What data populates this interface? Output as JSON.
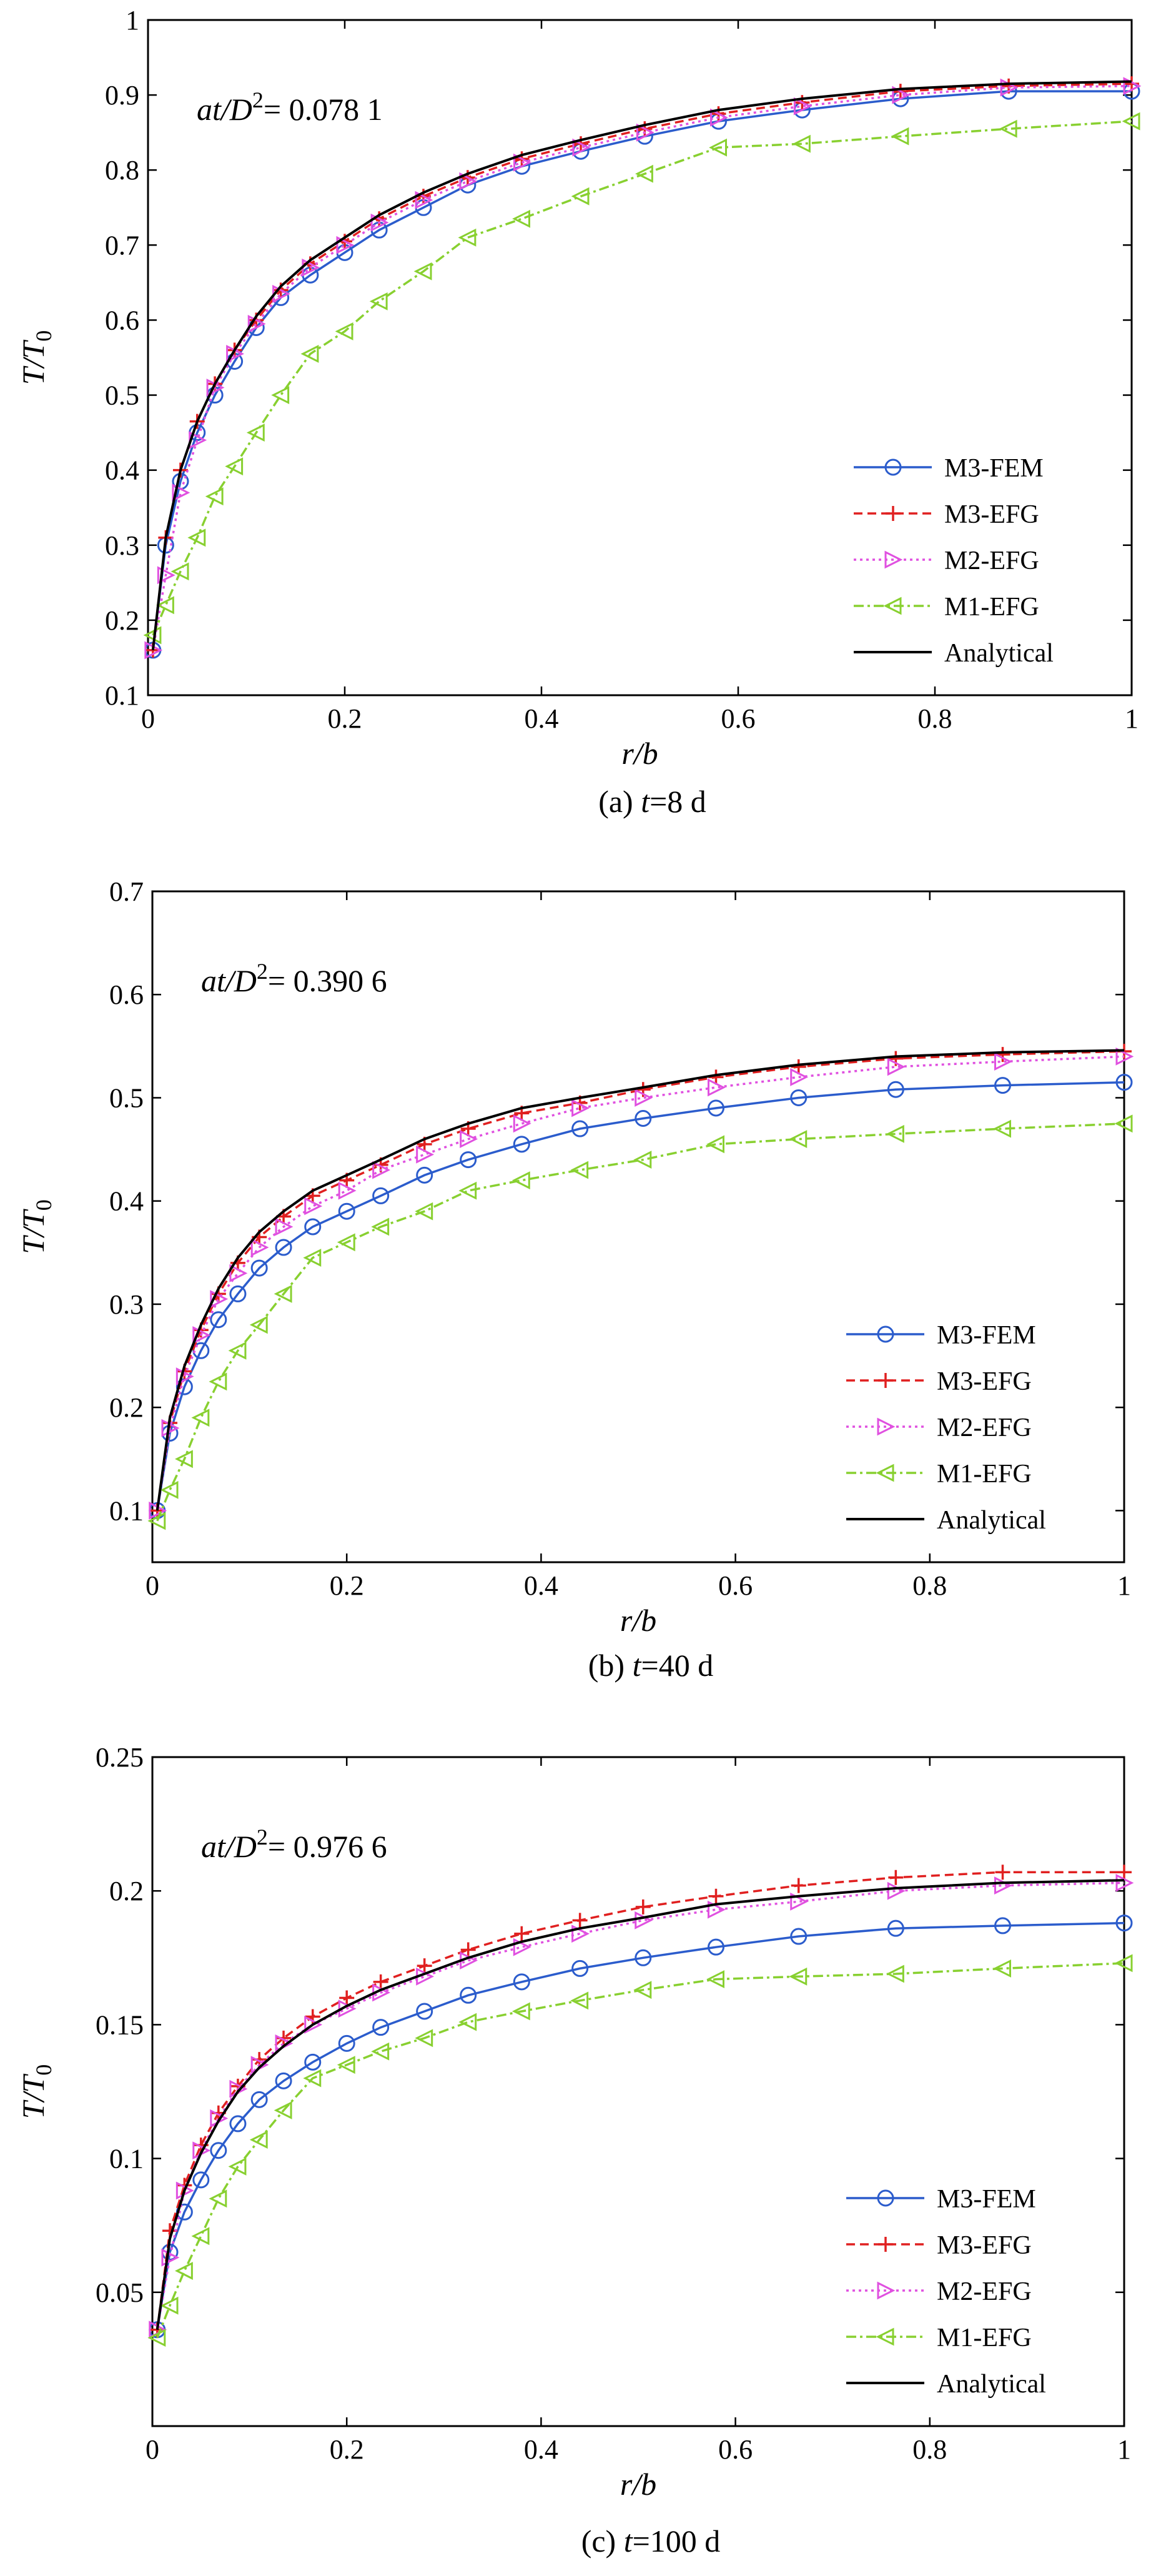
{
  "chart_data": [
    {
      "type": "line",
      "caption": "(a) t=8 d",
      "annotation": "at/D²= 0.078 1",
      "xlabel": "r/b",
      "ylabel": "T/T0",
      "xlim": [
        0,
        1
      ],
      "ylim": [
        0.1,
        1
      ],
      "xticks": [
        "0",
        "0.2",
        "0.4",
        "0.6",
        "0.8",
        "1"
      ],
      "yticks": [
        "0.1",
        "0.2",
        "0.3",
        "0.4",
        "0.5",
        "0.6",
        "0.7",
        "0.8",
        "0.9",
        "1"
      ],
      "legend_position": "bottom-right",
      "x": [
        0.005,
        0.018,
        0.033,
        0.05,
        0.068,
        0.088,
        0.11,
        0.135,
        0.165,
        0.2,
        0.235,
        0.28,
        0.325,
        0.38,
        0.44,
        0.505,
        0.58,
        0.665,
        0.765,
        0.875,
        1.0
      ],
      "series": [
        {
          "name": "M3-FEM",
          "color": "#2b5ccc",
          "dash": "",
          "marker": "circle",
          "values": [
            0.16,
            0.3,
            0.385,
            0.45,
            0.5,
            0.545,
            0.59,
            0.63,
            0.66,
            0.69,
            0.72,
            0.75,
            0.78,
            0.805,
            0.825,
            0.845,
            0.865,
            0.88,
            0.895,
            0.905,
            0.905
          ]
        },
        {
          "name": "M3-EFG",
          "color": "#e02020",
          "dash": "14,8",
          "marker": "plus",
          "values": [
            0.16,
            0.31,
            0.4,
            0.465,
            0.515,
            0.56,
            0.6,
            0.64,
            0.675,
            0.705,
            0.735,
            0.765,
            0.79,
            0.815,
            0.835,
            0.855,
            0.875,
            0.89,
            0.905,
            0.912,
            0.915
          ]
        },
        {
          "name": "M2-EFG",
          "color": "#e050e0",
          "dash": "4,6",
          "marker": "triangle-right",
          "values": [
            0.16,
            0.26,
            0.37,
            0.44,
            0.51,
            0.555,
            0.595,
            0.635,
            0.67,
            0.7,
            0.73,
            0.76,
            0.785,
            0.81,
            0.83,
            0.85,
            0.87,
            0.885,
            0.9,
            0.91,
            0.912
          ]
        },
        {
          "name": "M1-EFG",
          "color": "#88d030",
          "dash": "16,6,4,6",
          "marker": "triangle-left",
          "values": [
            0.18,
            0.22,
            0.265,
            0.31,
            0.365,
            0.405,
            0.45,
            0.5,
            0.555,
            0.585,
            0.625,
            0.665,
            0.71,
            0.735,
            0.765,
            0.795,
            0.83,
            0.835,
            0.845,
            0.855,
            0.865
          ]
        },
        {
          "name": "Analytical",
          "color": "#000000",
          "dash": "",
          "marker": "none",
          "values": [
            0.16,
            0.31,
            0.4,
            0.465,
            0.515,
            0.56,
            0.605,
            0.645,
            0.68,
            0.71,
            0.74,
            0.77,
            0.795,
            0.82,
            0.84,
            0.86,
            0.88,
            0.895,
            0.908,
            0.915,
            0.918
          ]
        }
      ]
    },
    {
      "type": "line",
      "caption": "(b) t=40 d",
      "annotation": "at/D²= 0.390 6",
      "xlabel": "r/b",
      "ylabel": "T/T0",
      "xlim": [
        0,
        1
      ],
      "ylim": [
        0.05,
        0.7
      ],
      "xticks": [
        "0",
        "0.2",
        "0.4",
        "0.6",
        "0.8",
        "1"
      ],
      "yticks": [
        "0.1",
        "0.2",
        "0.3",
        "0.4",
        "0.5",
        "0.6",
        "0.7"
      ],
      "legend_position": "bottom-right",
      "x": [
        0.005,
        0.018,
        0.033,
        0.05,
        0.068,
        0.088,
        0.11,
        0.135,
        0.165,
        0.2,
        0.235,
        0.28,
        0.325,
        0.38,
        0.44,
        0.505,
        0.58,
        0.665,
        0.765,
        0.875,
        1.0
      ],
      "series": [
        {
          "name": "M3-FEM",
          "color": "#2b5ccc",
          "dash": "",
          "marker": "circle",
          "values": [
            0.1,
            0.175,
            0.22,
            0.255,
            0.285,
            0.31,
            0.335,
            0.355,
            0.375,
            0.39,
            0.405,
            0.425,
            0.44,
            0.455,
            0.47,
            0.48,
            0.49,
            0.5,
            0.508,
            0.512,
            0.515
          ]
        },
        {
          "name": "M3-EFG",
          "color": "#e02020",
          "dash": "14,8",
          "marker": "plus",
          "values": [
            0.1,
            0.185,
            0.235,
            0.275,
            0.31,
            0.34,
            0.365,
            0.385,
            0.405,
            0.42,
            0.435,
            0.455,
            0.47,
            0.485,
            0.495,
            0.508,
            0.52,
            0.53,
            0.538,
            0.542,
            0.545
          ]
        },
        {
          "name": "M2-EFG",
          "color": "#e050e0",
          "dash": "4,6",
          "marker": "triangle-right",
          "values": [
            0.1,
            0.18,
            0.23,
            0.27,
            0.305,
            0.33,
            0.355,
            0.375,
            0.395,
            0.41,
            0.43,
            0.445,
            0.46,
            0.475,
            0.49,
            0.5,
            0.51,
            0.52,
            0.53,
            0.535,
            0.54
          ]
        },
        {
          "name": "M1-EFG",
          "color": "#88d030",
          "dash": "16,6,4,6",
          "marker": "triangle-left",
          "values": [
            0.09,
            0.12,
            0.15,
            0.19,
            0.225,
            0.255,
            0.28,
            0.31,
            0.345,
            0.36,
            0.375,
            0.39,
            0.41,
            0.42,
            0.43,
            0.44,
            0.455,
            0.46,
            0.465,
            0.47,
            0.475
          ]
        },
        {
          "name": "Analytical",
          "color": "#000000",
          "dash": "",
          "marker": "none",
          "values": [
            0.1,
            0.19,
            0.24,
            0.28,
            0.315,
            0.345,
            0.37,
            0.39,
            0.41,
            0.425,
            0.44,
            0.46,
            0.475,
            0.49,
            0.5,
            0.51,
            0.522,
            0.532,
            0.54,
            0.544,
            0.546
          ]
        }
      ]
    },
    {
      "type": "line",
      "caption": "(c) t=100 d",
      "annotation": "at/D²= 0.976 6",
      "xlabel": "r/b",
      "ylabel": "T/T0",
      "xlim": [
        0,
        1
      ],
      "ylim": [
        0,
        0.25
      ],
      "xticks": [
        "0",
        "0.2",
        "0.4",
        "0.6",
        "0.8",
        "1"
      ],
      "yticks": [
        "0.05",
        "0.1",
        "0.15",
        "0.2",
        "0.25"
      ],
      "legend_position": "bottom-right",
      "x": [
        0.005,
        0.018,
        0.033,
        0.05,
        0.068,
        0.088,
        0.11,
        0.135,
        0.165,
        0.2,
        0.235,
        0.28,
        0.325,
        0.38,
        0.44,
        0.505,
        0.58,
        0.665,
        0.765,
        0.875,
        1.0
      ],
      "series": [
        {
          "name": "M3-FEM",
          "color": "#2b5ccc",
          "dash": "",
          "marker": "circle",
          "values": [
            0.036,
            0.065,
            0.08,
            0.092,
            0.103,
            0.113,
            0.122,
            0.129,
            0.136,
            0.143,
            0.149,
            0.155,
            0.161,
            0.166,
            0.171,
            0.175,
            0.179,
            0.183,
            0.186,
            0.187,
            0.188
          ]
        },
        {
          "name": "M3-EFG",
          "color": "#e02020",
          "dash": "14,8",
          "marker": "plus",
          "values": [
            0.036,
            0.073,
            0.09,
            0.105,
            0.117,
            0.127,
            0.137,
            0.145,
            0.153,
            0.16,
            0.166,
            0.172,
            0.178,
            0.184,
            0.189,
            0.194,
            0.198,
            0.202,
            0.205,
            0.207,
            0.207
          ]
        },
        {
          "name": "M2-EFG",
          "color": "#e050e0",
          "dash": "4,6",
          "marker": "triangle-right",
          "values": [
            0.036,
            0.063,
            0.088,
            0.103,
            0.115,
            0.126,
            0.135,
            0.143,
            0.15,
            0.156,
            0.162,
            0.168,
            0.174,
            0.179,
            0.184,
            0.189,
            0.193,
            0.196,
            0.2,
            0.202,
            0.203
          ]
        },
        {
          "name": "M1-EFG",
          "color": "#88d030",
          "dash": "16,6,4,6",
          "marker": "triangle-left",
          "values": [
            0.033,
            0.045,
            0.058,
            0.071,
            0.085,
            0.097,
            0.107,
            0.118,
            0.13,
            0.135,
            0.14,
            0.145,
            0.151,
            0.155,
            0.159,
            0.163,
            0.167,
            0.168,
            0.169,
            0.171,
            0.173
          ]
        },
        {
          "name": "Analytical",
          "color": "#000000",
          "dash": "",
          "marker": "none",
          "values": [
            0.036,
            0.07,
            0.088,
            0.102,
            0.114,
            0.125,
            0.134,
            0.142,
            0.15,
            0.157,
            0.163,
            0.169,
            0.175,
            0.181,
            0.186,
            0.19,
            0.195,
            0.198,
            0.201,
            0.203,
            0.204
          ]
        }
      ]
    }
  ]
}
